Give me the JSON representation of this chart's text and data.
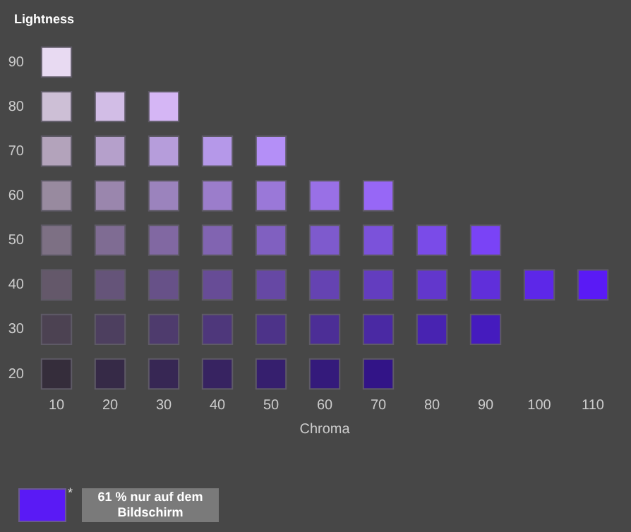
{
  "chart_data": {
    "type": "scatter",
    "ylabel": "Lightness",
    "xlabel": "Chroma",
    "marker": "square",
    "grid": false,
    "xlim": [
      10,
      110
    ],
    "ylim": [
      20,
      90
    ],
    "xticks": [
      10,
      20,
      30,
      40,
      50,
      60,
      70,
      80,
      90,
      100,
      110
    ],
    "yticks": [
      20,
      30,
      40,
      50,
      60,
      70,
      80,
      90
    ],
    "x": [
      10,
      10,
      20,
      30,
      10,
      20,
      30,
      40,
      50,
      10,
      20,
      30,
      40,
      50,
      60,
      70,
      10,
      20,
      30,
      40,
      50,
      60,
      70,
      80,
      90,
      10,
      20,
      30,
      40,
      50,
      60,
      70,
      80,
      90,
      100,
      110,
      10,
      20,
      30,
      40,
      50,
      60,
      70,
      80,
      90,
      10,
      20,
      30,
      40,
      50,
      60,
      70
    ],
    "values": [
      90,
      80,
      80,
      80,
      70,
      70,
      70,
      70,
      70,
      60,
      60,
      60,
      60,
      60,
      60,
      60,
      50,
      50,
      50,
      50,
      50,
      50,
      50,
      50,
      50,
      40,
      40,
      40,
      40,
      40,
      40,
      40,
      40,
      40,
      40,
      40,
      30,
      30,
      30,
      30,
      30,
      30,
      30,
      30,
      30,
      20,
      20,
      20,
      20,
      20,
      20,
      20
    ],
    "colors": [
      "#e8daf2",
      "#cdbfd6",
      "#d2bde6",
      "#d5b6f5",
      "#b3a3bb",
      "#b5a0cb",
      "#b69ddb",
      "#b598e9",
      "#b48ff7",
      "#988a9f",
      "#9a86ad",
      "#9b83bd",
      "#9b7dcb",
      "#9a78d8",
      "#9970e6",
      "#9767f6",
      "#7d7084",
      "#7f6c93",
      "#8168a2",
      "#8164b1",
      "#8060c0",
      "#7e5acd",
      "#7b52da",
      "#7a4be8",
      "#7a43f6",
      "#64586a",
      "#655479",
      "#675188",
      "#674c96",
      "#6648a4",
      "#6543b2",
      "#633dbf",
      "#6237cc",
      "#602fda",
      "#5d27e8",
      "#5a1af5",
      "#4c4252",
      "#4d3f5f",
      "#4e3b6d",
      "#4e377b",
      "#4d3389",
      "#4c2e96",
      "#4a29a3",
      "#4823b1",
      "#451bbe",
      "#352d3b",
      "#362a47",
      "#372754",
      "#372361",
      "#361f6e",
      "#341a7b",
      "#321487"
    ],
    "annotations": [
      "*",
      "61 % nur auf dem Bildschirm"
    ]
  }
}
